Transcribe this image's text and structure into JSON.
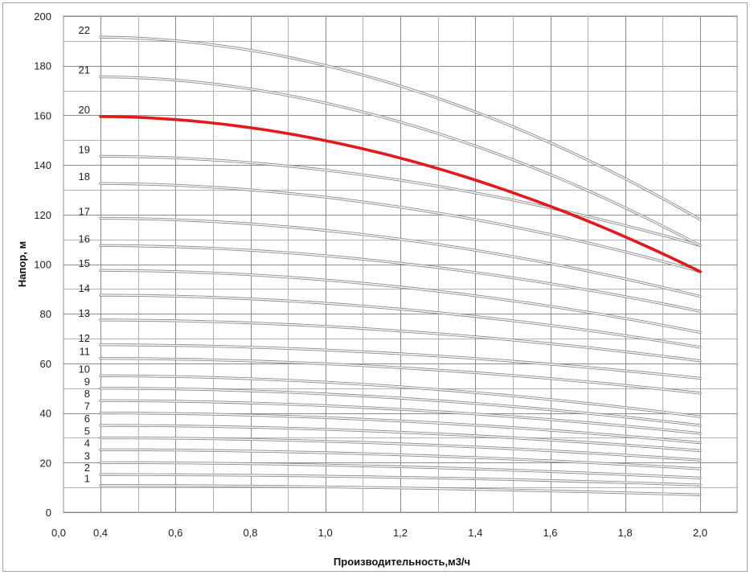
{
  "chart_data": {
    "type": "line",
    "xlabel": "Производительность,м3/ч",
    "ylabel": "Напор, м",
    "xlim": [
      0.0,
      2.0
    ],
    "ylim": [
      0,
      200
    ],
    "x_tick_labels": [
      "0,0",
      "0,4",
      "0,6",
      "0,8",
      "1,0",
      "1,2",
      "1,4",
      "1,6",
      "1,8",
      "2,0"
    ],
    "x_tick_values": [
      0.0,
      0.4,
      0.6,
      0.8,
      1.0,
      1.2,
      1.4,
      1.6,
      1.8,
      2.0
    ],
    "y_tick_labels": [
      "0",
      "20",
      "40",
      "60",
      "80",
      "100",
      "120",
      "140",
      "160",
      "180",
      "200"
    ],
    "y_tick_values": [
      0,
      20,
      40,
      60,
      80,
      100,
      120,
      140,
      160,
      180,
      200
    ],
    "grid": true,
    "highlight_color": "#e11b1b",
    "curve_color": "#8a8a8a",
    "series": [
      {
        "name": "1",
        "x": [
          0.4,
          2.0
        ],
        "y": [
          10.8,
          7.0
        ]
      },
      {
        "name": "2",
        "x": [
          0.4,
          2.0
        ],
        "y": [
          15.2,
          11.0
        ]
      },
      {
        "name": "3",
        "x": [
          0.4,
          2.0
        ],
        "y": [
          20.0,
          13.8
        ]
      },
      {
        "name": "4",
        "x": [
          0.4,
          2.0
        ],
        "y": [
          25.2,
          17.5
        ]
      },
      {
        "name": "5",
        "x": [
          0.4,
          2.0
        ],
        "y": [
          30.0,
          21.0
        ]
      },
      {
        "name": "6",
        "x": [
          0.4,
          2.0
        ],
        "y": [
          35.0,
          24.8
        ]
      },
      {
        "name": "7",
        "x": [
          0.4,
          2.0
        ],
        "y": [
          40.0,
          28.0
        ]
      },
      {
        "name": "8",
        "x": [
          0.4,
          2.0
        ],
        "y": [
          45.0,
          31.8
        ]
      },
      {
        "name": "9",
        "x": [
          0.4,
          2.0
        ],
        "y": [
          50.0,
          35.0
        ]
      },
      {
        "name": "10",
        "x": [
          0.4,
          2.0
        ],
        "y": [
          55.0,
          38.5
        ]
      },
      {
        "name": "11",
        "x": [
          0.4,
          2.0
        ],
        "y": [
          62.0,
          48.0
        ]
      },
      {
        "name": "12",
        "x": [
          0.4,
          2.0
        ],
        "y": [
          67.5,
          54.0
        ]
      },
      {
        "name": "13",
        "x": [
          0.4,
          2.0
        ],
        "y": [
          77.5,
          61.0
        ]
      },
      {
        "name": "14",
        "x": [
          0.4,
          2.0
        ],
        "y": [
          87.5,
          66.5
        ]
      },
      {
        "name": "15",
        "x": [
          0.4,
          2.0
        ],
        "y": [
          97.5,
          72.5
        ]
      },
      {
        "name": "16",
        "x": [
          0.4,
          2.0
        ],
        "y": [
          107.5,
          81.0
        ]
      },
      {
        "name": "17",
        "x": [
          0.4,
          2.0
        ],
        "y": [
          118.5,
          87.0
        ]
      },
      {
        "name": "18",
        "x": [
          0.4,
          2.0
        ],
        "y": [
          132.5,
          97.0
        ]
      },
      {
        "name": "19",
        "x": [
          0.4,
          2.0
        ],
        "y": [
          143.5,
          107.5
        ]
      },
      {
        "name": "20",
        "x": [
          0.4,
          2.0
        ],
        "y": [
          159.5,
          97.0
        ],
        "highlight": true
      },
      {
        "name": "21",
        "x": [
          0.4,
          2.0
        ],
        "y": [
          175.5,
          107.5
        ]
      },
      {
        "name": "22",
        "x": [
          0.4,
          2.0
        ],
        "y": [
          191.5,
          118.0
        ]
      }
    ]
  }
}
